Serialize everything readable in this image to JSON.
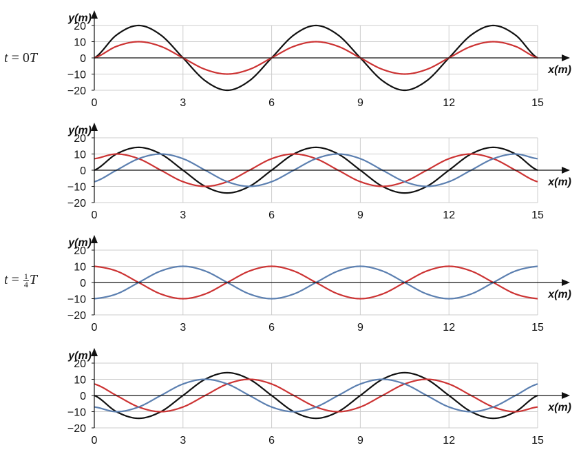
{
  "labels": {
    "t0_prefix": "t",
    "t0_eq": " = 0",
    "t0_unit": "T",
    "t1_prefix": "t",
    "t1_eq": " = ",
    "t1_num": "1",
    "t1_den": "4",
    "t1_unit": "T"
  },
  "colors": {
    "black": "#111111",
    "red": "#cc3333",
    "blue": "#5b7fb0",
    "grid": "#cccccc",
    "axis": "#111111"
  },
  "chart_data": [
    {
      "type": "line",
      "title": "",
      "xlabel": "x(m)",
      "ylabel": "y(m)",
      "xlim": [
        0,
        15
      ],
      "ylim": [
        -20,
        20
      ],
      "xticks": [
        0,
        3,
        6,
        9,
        12,
        15
      ],
      "yticks": [
        20,
        10,
        0,
        -10,
        -20
      ],
      "grid": true,
      "series": [
        {
          "color": "black",
          "x": [
            0,
            0.75,
            1.5,
            2.25,
            3,
            3.75,
            4.5,
            5.25,
            6,
            6.75,
            7.5,
            8.25,
            9,
            9.75,
            10.5,
            11.25,
            12,
            12.75,
            13.5,
            14.25,
            15
          ],
          "y": [
            0,
            14.1,
            20,
            14.1,
            0,
            -14.1,
            -20,
            -14.1,
            0,
            14.1,
            20,
            14.1,
            0,
            -14.1,
            -20,
            -14.1,
            0,
            14.1,
            20,
            14.1,
            0
          ]
        },
        {
          "color": "red",
          "x": [
            0,
            0.75,
            1.5,
            2.25,
            3,
            3.75,
            4.5,
            5.25,
            6,
            6.75,
            7.5,
            8.25,
            9,
            9.75,
            10.5,
            11.25,
            12,
            12.75,
            13.5,
            14.25,
            15
          ],
          "y": [
            0,
            7.1,
            10,
            7.1,
            0,
            -7.1,
            -10,
            -7.1,
            0,
            7.1,
            10,
            7.1,
            0,
            -7.1,
            -10,
            -7.1,
            0,
            7.1,
            10,
            7.1,
            0
          ]
        }
      ]
    },
    {
      "type": "line",
      "title": "",
      "xlabel": "x(m)",
      "ylabel": "y(m)",
      "xlim": [
        0,
        15
      ],
      "ylim": [
        -20,
        20
      ],
      "xticks": [
        0,
        3,
        6,
        9,
        12,
        15
      ],
      "yticks": [
        20,
        10,
        0,
        -10,
        -20
      ],
      "grid": true,
      "series": [
        {
          "color": "black",
          "x": [
            0,
            0.75,
            1.5,
            2.25,
            3,
            3.75,
            4.5,
            5.25,
            6,
            6.75,
            7.5,
            8.25,
            9,
            9.75,
            10.5,
            11.25,
            12,
            12.75,
            13.5,
            14.25,
            15
          ],
          "y": [
            0,
            10,
            14.1,
            10,
            0,
            -10,
            -14.1,
            -10,
            0,
            10,
            14.1,
            10,
            0,
            -10,
            -14.1,
            -10,
            0,
            10,
            14.1,
            10,
            0
          ]
        },
        {
          "color": "red",
          "x": [
            0,
            0.75,
            1.5,
            2.25,
            3,
            3.75,
            4.5,
            5.25,
            6,
            6.75,
            7.5,
            8.25,
            9,
            9.75,
            10.5,
            11.25,
            12,
            12.75,
            13.5,
            14.25,
            15
          ],
          "y": [
            7.1,
            10,
            7.1,
            0,
            -7.1,
            -10,
            -7.1,
            0,
            7.1,
            10,
            7.1,
            0,
            -7.1,
            -10,
            -7.1,
            0,
            7.1,
            10,
            7.1,
            0,
            -7.1
          ]
        },
        {
          "color": "blue",
          "x": [
            0,
            0.75,
            1.5,
            2.25,
            3,
            3.75,
            4.5,
            5.25,
            6,
            6.75,
            7.5,
            8.25,
            9,
            9.75,
            10.5,
            11.25,
            12,
            12.75,
            13.5,
            14.25,
            15
          ],
          "y": [
            -7.1,
            0,
            7.1,
            10,
            7.1,
            0,
            -7.1,
            -10,
            -7.1,
            0,
            7.1,
            10,
            7.1,
            0,
            -7.1,
            -10,
            -7.1,
            0,
            7.1,
            10,
            7.1
          ]
        }
      ]
    },
    {
      "type": "line",
      "title": "",
      "xlabel": "x(m)",
      "ylabel": "y(m)",
      "xlim": [
        0,
        15
      ],
      "ylim": [
        -20,
        20
      ],
      "xticks": [
        0,
        3,
        6,
        9,
        12,
        15
      ],
      "yticks": [
        20,
        10,
        0,
        -10,
        -20
      ],
      "grid": true,
      "series": [
        {
          "color": "red",
          "x": [
            0,
            0.75,
            1.5,
            2.25,
            3,
            3.75,
            4.5,
            5.25,
            6,
            6.75,
            7.5,
            8.25,
            9,
            9.75,
            10.5,
            11.25,
            12,
            12.75,
            13.5,
            14.25,
            15
          ],
          "y": [
            10,
            7.1,
            0,
            -7.1,
            -10,
            -7.1,
            0,
            7.1,
            10,
            7.1,
            0,
            -7.1,
            -10,
            -7.1,
            0,
            7.1,
            10,
            7.1,
            0,
            -7.1,
            -10
          ]
        },
        {
          "color": "blue",
          "x": [
            0,
            0.75,
            1.5,
            2.25,
            3,
            3.75,
            4.5,
            5.25,
            6,
            6.75,
            7.5,
            8.25,
            9,
            9.75,
            10.5,
            11.25,
            12,
            12.75,
            13.5,
            14.25,
            15
          ],
          "y": [
            -10,
            -7.1,
            0,
            7.1,
            10,
            7.1,
            0,
            -7.1,
            -10,
            -7.1,
            0,
            7.1,
            10,
            7.1,
            0,
            -7.1,
            -10,
            -7.1,
            0,
            7.1,
            10
          ]
        }
      ]
    },
    {
      "type": "line",
      "title": "",
      "xlabel": "x(m)",
      "ylabel": "y(m)",
      "xlim": [
        0,
        15
      ],
      "ylim": [
        -20,
        20
      ],
      "xticks": [
        0,
        3,
        6,
        9,
        12,
        15
      ],
      "yticks": [
        20,
        10,
        0,
        -10,
        -20
      ],
      "grid": true,
      "series": [
        {
          "color": "black",
          "x": [
            0,
            0.75,
            1.5,
            2.25,
            3,
            3.75,
            4.5,
            5.25,
            6,
            6.75,
            7.5,
            8.25,
            9,
            9.75,
            10.5,
            11.25,
            12,
            12.75,
            13.5,
            14.25,
            15
          ],
          "y": [
            0,
            -10,
            -14.1,
            -10,
            0,
            10,
            14.1,
            10,
            0,
            -10,
            -14.1,
            -10,
            0,
            10,
            14.1,
            10,
            0,
            -10,
            -14.1,
            -10,
            0
          ]
        },
        {
          "color": "red",
          "x": [
            0,
            0.75,
            1.5,
            2.25,
            3,
            3.75,
            4.5,
            5.25,
            6,
            6.75,
            7.5,
            8.25,
            9,
            9.75,
            10.5,
            11.25,
            12,
            12.75,
            13.5,
            14.25,
            15
          ],
          "y": [
            7.1,
            0,
            -7.1,
            -10,
            -7.1,
            0,
            7.1,
            10,
            7.1,
            0,
            -7.1,
            -10,
            -7.1,
            0,
            7.1,
            10,
            7.1,
            0,
            -7.1,
            -10,
            -7.1
          ]
        },
        {
          "color": "blue",
          "x": [
            0,
            0.75,
            1.5,
            2.25,
            3,
            3.75,
            4.5,
            5.25,
            6,
            6.75,
            7.5,
            8.25,
            9,
            9.75,
            10.5,
            11.25,
            12,
            12.75,
            13.5,
            14.25,
            15
          ],
          "y": [
            -7.1,
            -10,
            -7.1,
            0,
            7.1,
            10,
            7.1,
            0,
            -7.1,
            -10,
            -7.1,
            0,
            7.1,
            10,
            7.1,
            0,
            -7.1,
            -10,
            -7.1,
            0,
            7.1
          ]
        }
      ]
    }
  ]
}
